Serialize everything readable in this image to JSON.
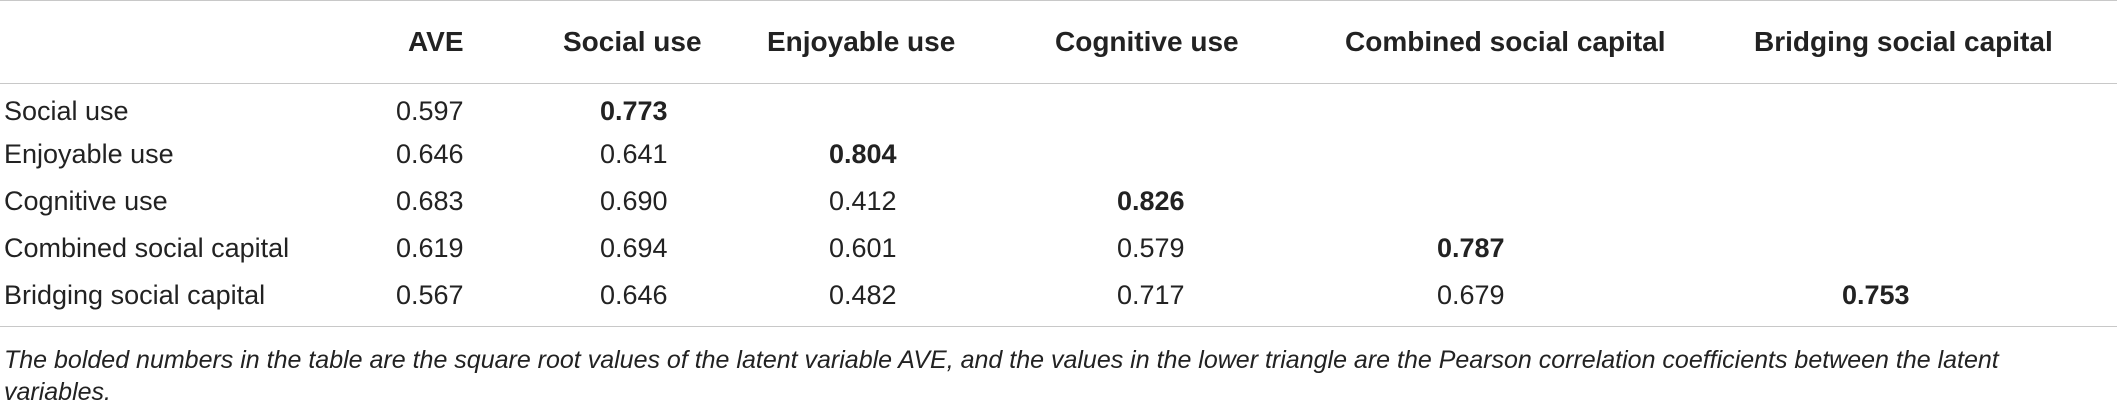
{
  "table": {
    "columns": [
      "",
      "AVE",
      "Social use",
      "Enjoyable use",
      "Cognitive use",
      "Combined social capital",
      "Bridging social capital"
    ],
    "rows": [
      {
        "label": "Social use",
        "cells": [
          "0.597",
          "0.773",
          "",
          "",
          "",
          ""
        ],
        "diag_index": 1
      },
      {
        "label": "Enjoyable use",
        "cells": [
          "0.646",
          "0.641",
          "0.804",
          "",
          "",
          ""
        ],
        "diag_index": 2
      },
      {
        "label": "Cognitive use",
        "cells": [
          "0.683",
          "0.690",
          "0.412",
          "0.826",
          "",
          ""
        ],
        "diag_index": 3
      },
      {
        "label": "Combined social capital",
        "cells": [
          "0.619",
          "0.694",
          "0.601",
          "0.579",
          "0.787",
          ""
        ],
        "diag_index": 4
      },
      {
        "label": "Bridging social capital",
        "cells": [
          "0.567",
          "0.646",
          "0.482",
          "0.717",
          "0.679",
          "0.753"
        ],
        "diag_index": 5
      }
    ]
  },
  "footnote": "The bolded numbers in the table are the square root values of the latent variable AVE, and the values in the lower triangle are the Pearson correlation coefficients between the latent variables."
}
